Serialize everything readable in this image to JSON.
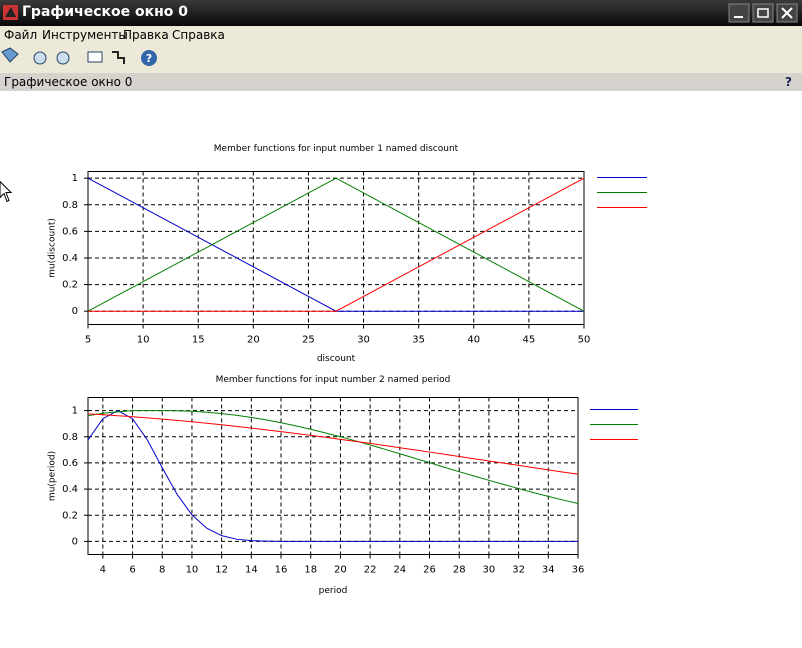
{
  "window": {
    "title": "Графическое окно 0",
    "menu": [
      "Файл",
      "Инструменты",
      "Правка",
      "Справка"
    ],
    "status": "Графическое окно 0",
    "help": "?"
  },
  "chart_data": [
    {
      "type": "line",
      "title": "Member functions for input number 1 named discount",
      "xlabel": "discount",
      "ylabel": "mu(discount)",
      "x": [
        5,
        27.5,
        50
      ],
      "series": [
        {
          "color": "#0000cc",
          "values": [
            1,
            0,
            0
          ]
        },
        {
          "color": "#008000",
          "values": [
            0,
            1,
            0
          ]
        },
        {
          "color": "#ff0000",
          "values": [
            0,
            0,
            1
          ]
        }
      ],
      "xlim": [
        5,
        50
      ],
      "xticks": [
        5,
        10,
        15,
        20,
        25,
        30,
        35,
        40,
        45,
        50
      ],
      "ylim": [
        -0.1,
        1.05
      ],
      "yticks": [
        0,
        0.2,
        0.4,
        0.6,
        0.8,
        1
      ],
      "grid": true
    },
    {
      "type": "line",
      "title": "Member functions for input number 2 named period",
      "xlabel": "period",
      "ylabel": "mu(period)",
      "x": [
        3,
        4,
        5,
        6,
        7,
        8,
        9,
        10,
        11,
        12,
        13,
        14,
        15,
        16,
        17,
        18,
        19,
        20,
        21,
        22,
        23,
        24,
        25,
        26,
        27,
        28,
        29,
        30,
        31,
        32,
        33,
        34,
        35,
        36
      ],
      "series": [
        {
          "color": "#0000cc",
          "values": [
            0.775,
            0.938,
            1,
            0.938,
            0.775,
            0.563,
            0.36,
            0.203,
            0.101,
            0.044,
            0.017,
            0.006,
            0.002,
            0,
            0,
            0,
            0,
            0,
            0,
            0,
            0,
            0,
            0,
            0,
            0,
            0,
            0,
            0,
            0,
            0,
            0,
            0,
            0,
            0
          ]
        },
        {
          "color": "#008000",
          "values": [
            0.96,
            0.98,
            0.99,
            1,
            1,
            1,
            0.999,
            0.995,
            0.987,
            0.977,
            0.964,
            0.947,
            0.929,
            0.907,
            0.883,
            0.857,
            0.829,
            0.8,
            0.769,
            0.737,
            0.704,
            0.67,
            0.636,
            0.602,
            0.567,
            0.533,
            0.5,
            0.467,
            0.435,
            0.404,
            0.373,
            0.344,
            0.316,
            0.29
          ]
        },
        {
          "color": "#ff0000",
          "values": [
            0.975,
            0.968,
            0.961,
            0.953,
            0.944,
            0.935,
            0.925,
            0.915,
            0.903,
            0.892,
            0.879,
            0.866,
            0.853,
            0.839,
            0.825,
            0.811,
            0.796,
            0.78,
            0.765,
            0.749,
            0.733,
            0.716,
            0.7,
            0.683,
            0.666,
            0.649,
            0.632,
            0.615,
            0.598,
            0.581,
            0.564,
            0.547,
            0.53,
            0.514
          ]
        }
      ],
      "xlim": [
        3,
        36
      ],
      "xticks": [
        4,
        6,
        8,
        10,
        12,
        14,
        16,
        18,
        20,
        22,
        24,
        26,
        28,
        30,
        32,
        34,
        36
      ],
      "ylim": [
        -0.1,
        1.1
      ],
      "yticks": [
        0,
        0.2,
        0.4,
        0.6,
        0.8,
        1
      ],
      "grid": true
    }
  ]
}
